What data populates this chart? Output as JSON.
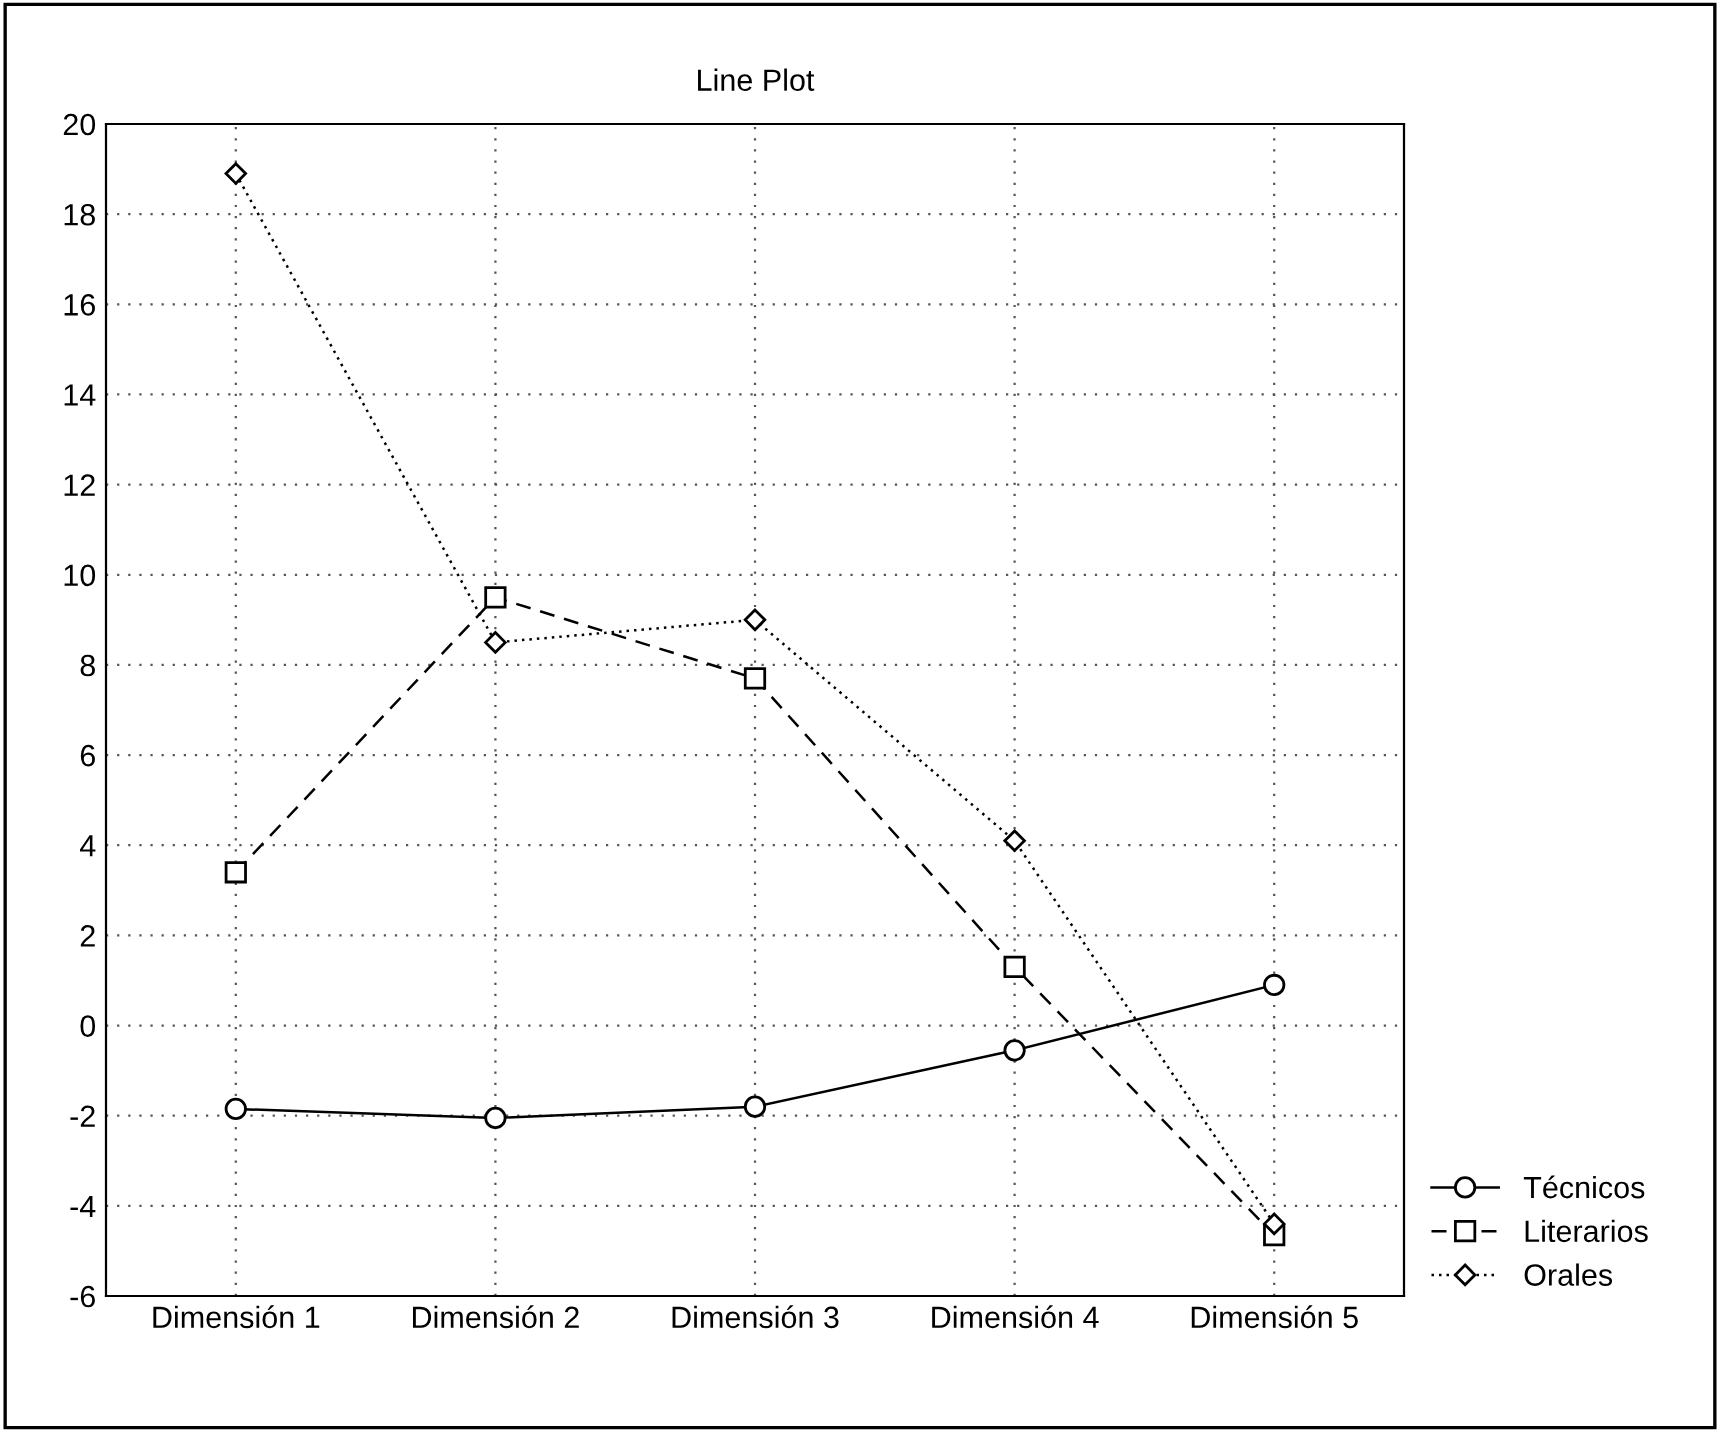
{
  "chart_data": {
    "type": "line",
    "title": "Line Plot",
    "categories": [
      "Dimensión 1",
      "Dimensión 2",
      "Dimensión 3",
      "Dimensión 4",
      "Dimensión 5"
    ],
    "series": [
      {
        "name": "Técnicos",
        "color": "#000000",
        "marker": "circle",
        "line_style": "solid",
        "values": [
          -1.85,
          -2.05,
          -1.8,
          -0.55,
          0.9
        ]
      },
      {
        "name": "Literarios",
        "color": "#000000",
        "marker": "square",
        "line_style": "dashed",
        "values": [
          3.4,
          9.5,
          7.7,
          1.3,
          -4.65
        ]
      },
      {
        "name": "Orales",
        "color": "#000000",
        "marker": "diamond",
        "line_style": "dotted",
        "values": [
          18.9,
          8.5,
          9.0,
          4.1,
          -4.4
        ]
      }
    ],
    "ylim": [
      -6,
      20
    ],
    "yticks": [
      -6,
      -4,
      -2,
      0,
      2,
      4,
      6,
      8,
      10,
      12,
      14,
      16,
      18,
      20
    ],
    "grid": true,
    "legend": "bottom right"
  }
}
